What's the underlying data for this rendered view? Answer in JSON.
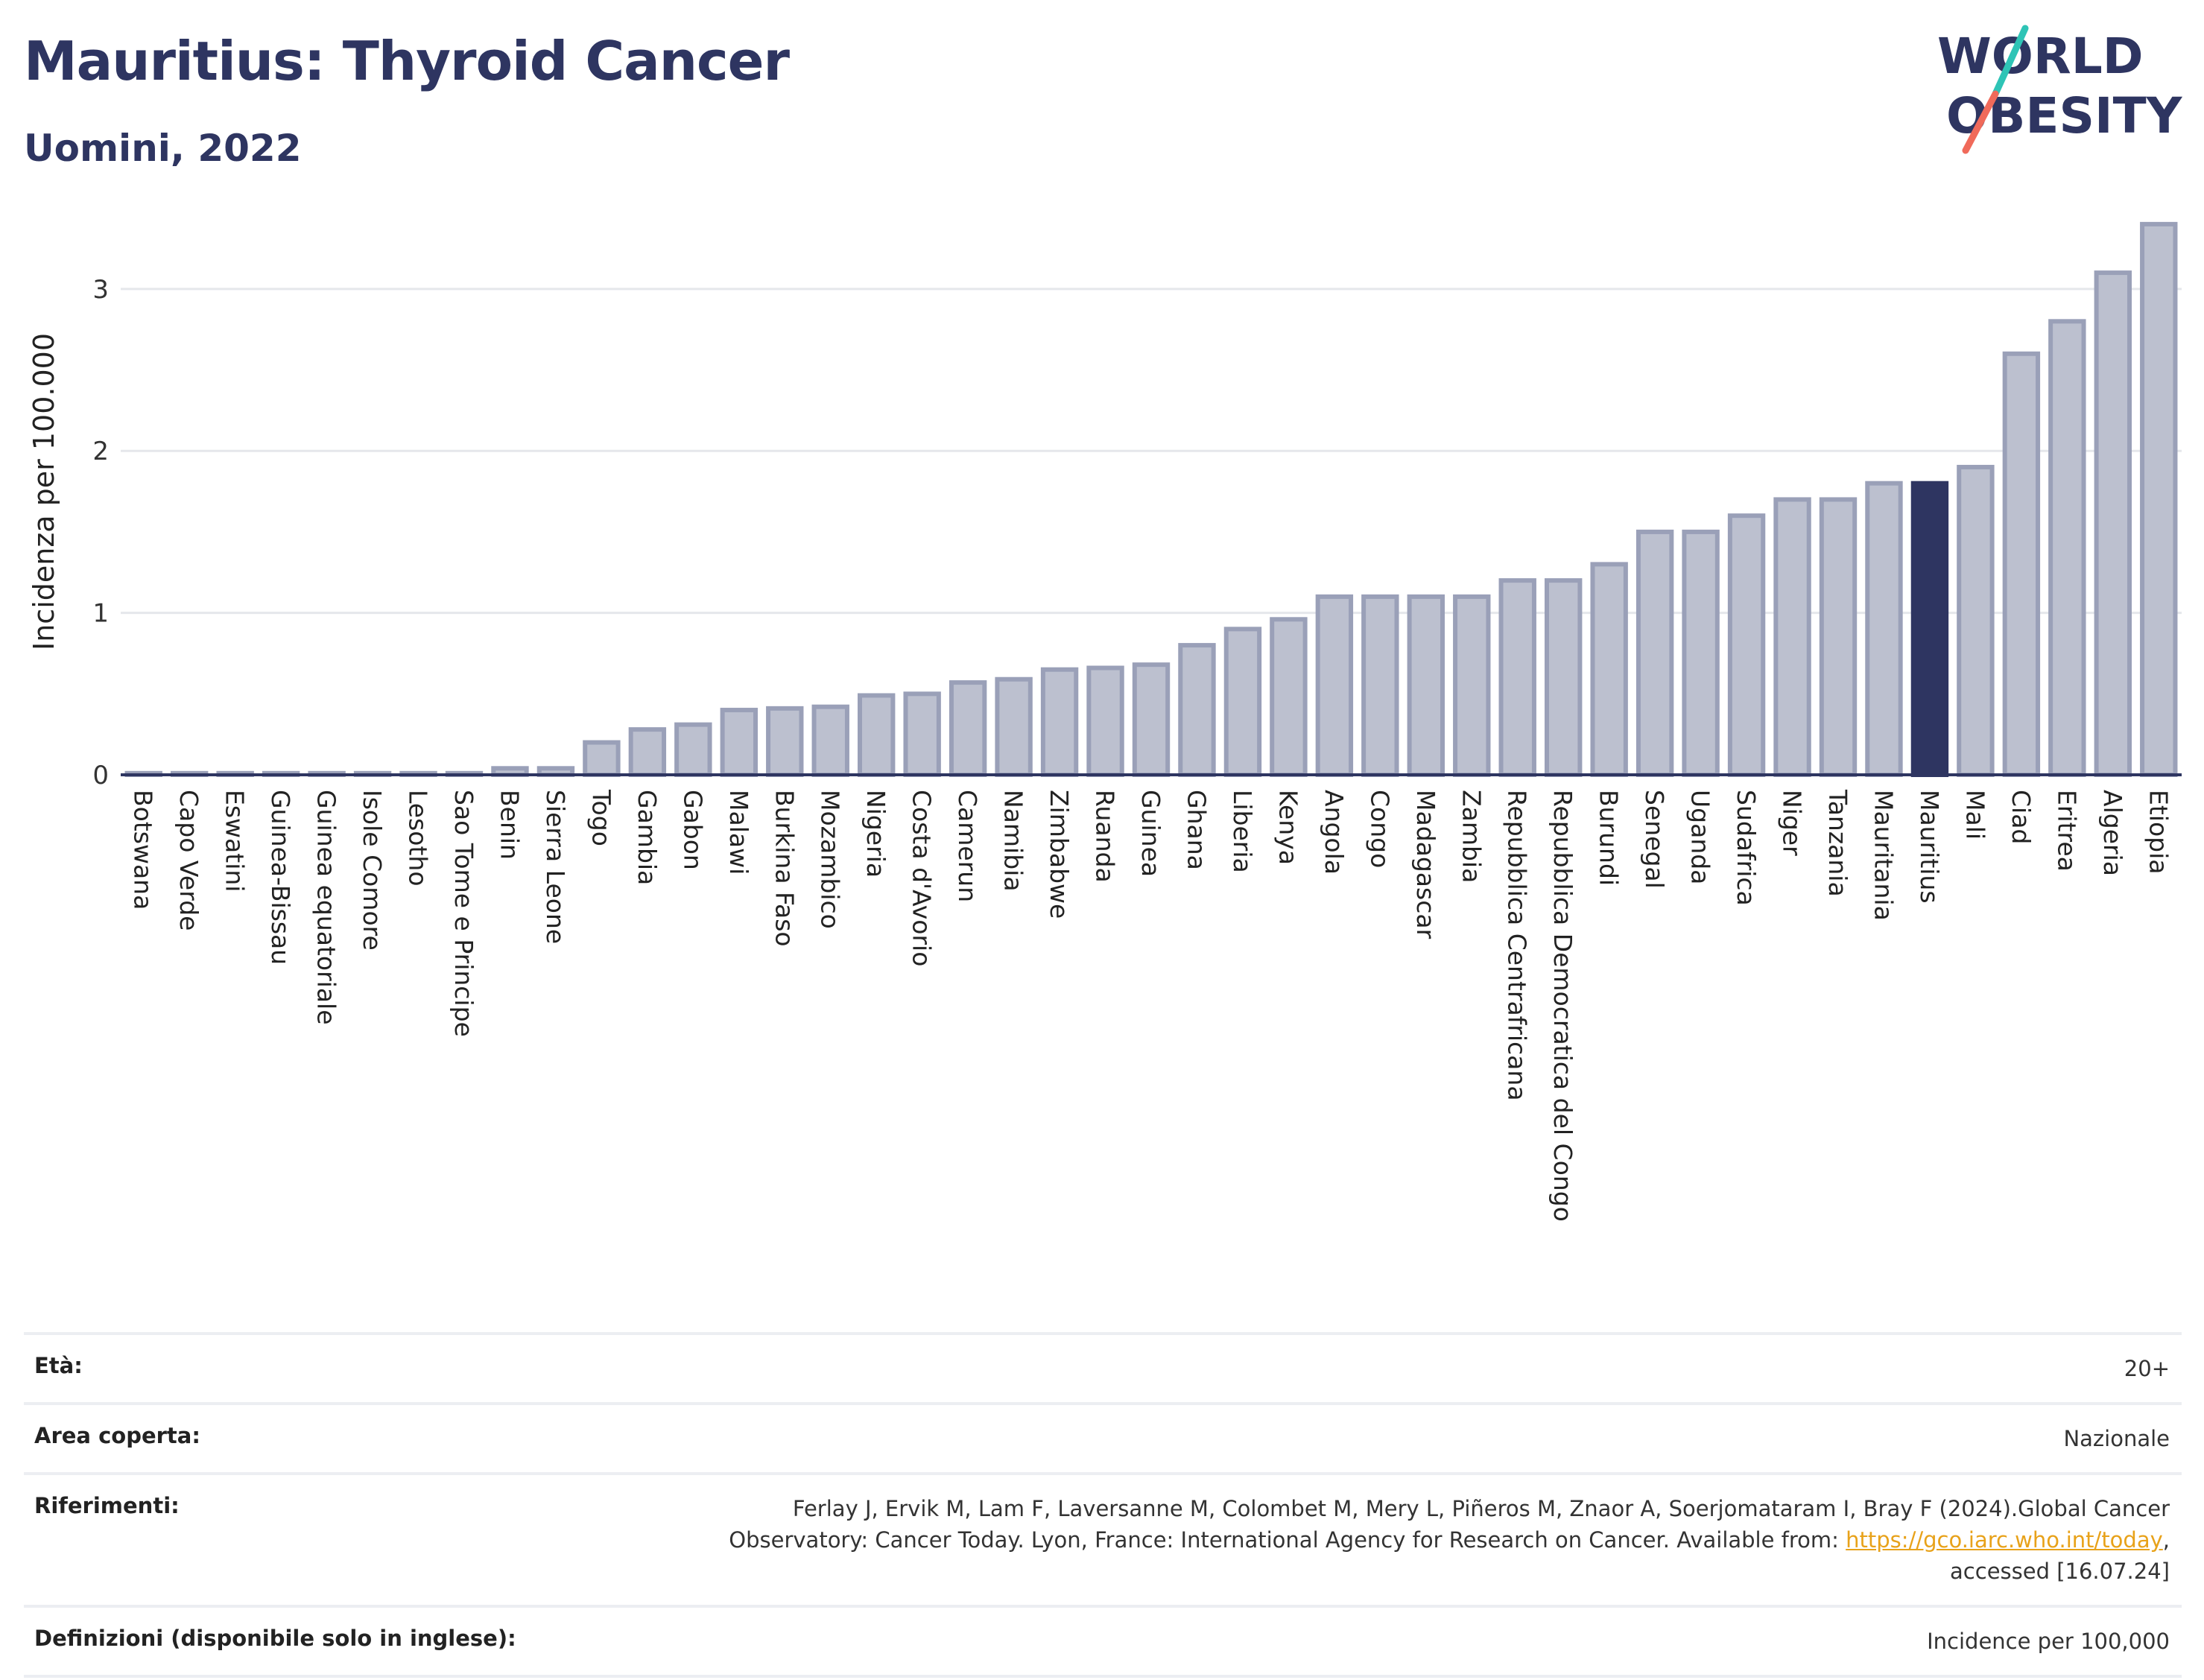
{
  "header": {
    "title": "Mauritius: Thyroid Cancer",
    "subtitle": "Uomini, 2022"
  },
  "logo": {
    "line1": "WORLD",
    "line2": "OBESITY",
    "colors": {
      "text": "#2e3561",
      "teal": "#2ec4b6",
      "coral": "#f06a5a"
    }
  },
  "colors": {
    "bar_default": "#bcc0cf",
    "bar_border": "#9aa0b8",
    "bar_highlight": "#2e3561",
    "grid": "#e5e7eb",
    "axis": "#2e3561"
  },
  "chart_data": {
    "type": "bar",
    "title": "Mauritius: Thyroid Cancer",
    "subtitle": "Uomini, 2022",
    "xlabel": "",
    "ylabel": "Incidenza per 100.000",
    "ylim": [
      0,
      3.45
    ],
    "yticks": [
      0,
      1,
      2,
      3
    ],
    "grid": true,
    "highlight": "Mauritius",
    "categories": [
      "Botswana",
      "Capo Verde",
      "Eswatini",
      "Guinea-Bissau",
      "Guinea equatoriale",
      "Isole Comore",
      "Lesotho",
      "Sao Tome e Principe",
      "Benin",
      "Sierra Leone",
      "Togo",
      "Gambia",
      "Gabon",
      "Malawi",
      "Burkina Faso",
      "Mozambico",
      "Nigeria",
      "Costa d'Avorio",
      "Camerun",
      "Namibia",
      "Zimbabwe",
      "Ruanda",
      "Guinea",
      "Ghana",
      "Liberia",
      "Kenya",
      "Angola",
      "Congo",
      "Madagascar",
      "Zambia",
      "Repubblica Centrafricana",
      "Repubblica Democratica del Congo",
      "Burundi",
      "Senegal",
      "Uganda",
      "Sudafrica",
      "Niger",
      "Tanzania",
      "Mauritania",
      "Mauritius",
      "Mali",
      "Ciad",
      "Eritrea",
      "Algeria",
      "Etiopia"
    ],
    "values": [
      0.01,
      0.01,
      0.01,
      0.01,
      0.01,
      0.01,
      0.01,
      0.01,
      0.04,
      0.04,
      0.2,
      0.28,
      0.31,
      0.4,
      0.41,
      0.42,
      0.49,
      0.5,
      0.57,
      0.59,
      0.65,
      0.66,
      0.68,
      0.8,
      0.9,
      0.96,
      1.1,
      1.1,
      1.1,
      1.1,
      1.2,
      1.2,
      1.3,
      1.5,
      1.5,
      1.6,
      1.7,
      1.7,
      1.8,
      1.8,
      1.9,
      2.6,
      2.8,
      3.1,
      3.4
    ]
  },
  "info": {
    "rows": [
      {
        "label": "Età:",
        "value": "20+"
      },
      {
        "label": "Area coperta:",
        "value": "Nazionale"
      },
      {
        "label": "Riferimenti:",
        "value_line1": "Ferlay J, Ervik M, Lam F, Laversanne M, Colombet M, Mery L, Piñeros M, Znaor A, Soerjomataram I, Bray F (2024).Global Cancer",
        "value_line2": "Observatory: Cancer Today. Lyon, France: International Agency for Research on Cancer. Available from: ",
        "link": "https://gco.iarc.who.int/today",
        "value_line2_end": ",",
        "value_line3": "accessed [16.07.24]"
      },
      {
        "label": "Definizioni (disponibile solo in inglese):",
        "value": "Incidence per 100,000"
      }
    ]
  }
}
